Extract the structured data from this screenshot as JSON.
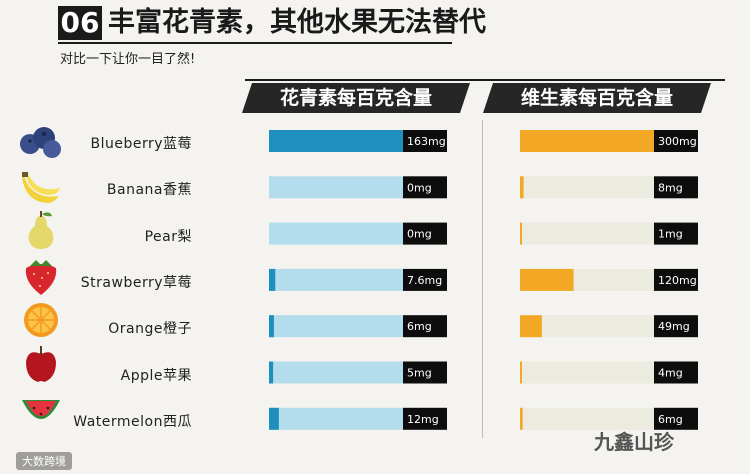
{
  "header": {
    "badge": "06",
    "title": "丰富花青素，其他水果无法替代",
    "subtitle": "对比一下让你一目了然!"
  },
  "footer": {
    "left_watermark": "大数跨境",
    "right_watermark": "九鑫山珍"
  },
  "chart_data": {
    "type": "bar",
    "categories": [
      "Blueberry蓝莓",
      "Banana香蕉",
      "Pear梨",
      "Strawberry草莓",
      "Orange橙子",
      "Apple苹果",
      "Watermelon西瓜"
    ],
    "panels": [
      {
        "title": "花青素每百克含量",
        "values": [
          163,
          0,
          0,
          7.6,
          6,
          5,
          12
        ],
        "value_labels": [
          "163mg",
          "0mg",
          "0mg",
          "7.6mg",
          "6mg",
          "5mg",
          "12mg"
        ],
        "unit": "mg",
        "max": 163,
        "fill_color": "#1f8fbf",
        "track_color": "#b3dcec"
      },
      {
        "title": "维生素每百克含量",
        "values": [
          300,
          8,
          1,
          120,
          49,
          4,
          6
        ],
        "value_labels": [
          "300mg",
          "8mg",
          "1mg",
          "120mg",
          "49mg",
          "4mg",
          "6mg"
        ],
        "unit": "mg",
        "max": 300,
        "fill_color": "#f2a824",
        "track_color": "#ecebdf"
      }
    ]
  }
}
